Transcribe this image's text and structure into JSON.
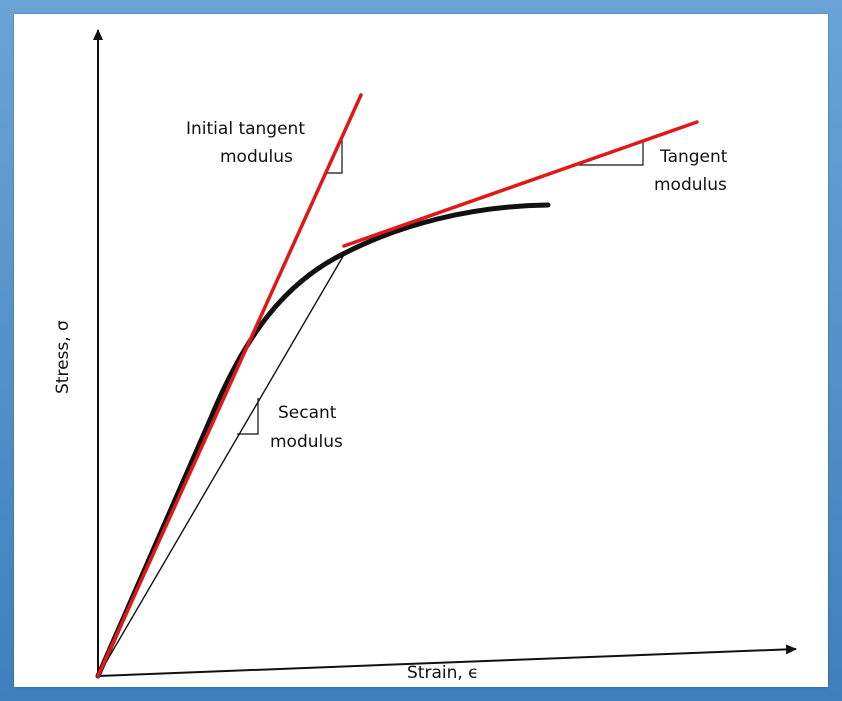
{
  "colors": {
    "frame": "#4a8ac4",
    "background": "#ffffff",
    "ink": "#111111",
    "tangent_lines": "#e01818"
  },
  "axes": {
    "y_label": "Stress, σ",
    "x_label": "Strain, ϵ"
  },
  "annotations": {
    "initial_tangent_line1": "Initial tangent",
    "initial_tangent_line2": "modulus",
    "tangent_line1": "Tangent",
    "tangent_line2": "modulus",
    "secant_line1": "Secant",
    "secant_line2": "modulus"
  }
}
